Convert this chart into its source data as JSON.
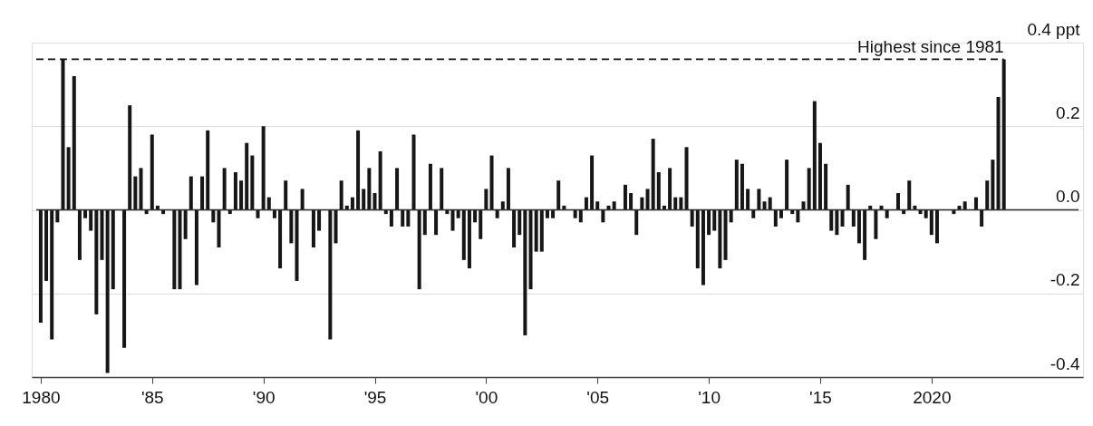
{
  "chart_data": {
    "type": "bar",
    "x": [
      1980,
      1980.25,
      1980.5,
      1980.75,
      1981,
      1981.25,
      1981.5,
      1981.75,
      1982,
      1982.25,
      1982.5,
      1982.75,
      1983,
      1983.25,
      1983.5,
      1983.75,
      1984,
      1984.25,
      1984.5,
      1984.75,
      1985,
      1985.25,
      1985.5,
      1985.75,
      1986,
      1986.25,
      1986.5,
      1986.75,
      1987,
      1987.25,
      1987.5,
      1987.75,
      1988,
      1988.25,
      1988.5,
      1988.75,
      1989,
      1989.25,
      1989.5,
      1989.75,
      1990,
      1990.25,
      1990.5,
      1990.75,
      1991,
      1991.25,
      1991.5,
      1991.75,
      1992,
      1992.25,
      1992.5,
      1992.75,
      1993,
      1993.25,
      1993.5,
      1993.75,
      1994,
      1994.25,
      1994.5,
      1994.75,
      1995,
      1995.25,
      1995.5,
      1995.75,
      1996,
      1996.25,
      1996.5,
      1996.75,
      1997,
      1997.25,
      1997.5,
      1997.75,
      1998,
      1998.25,
      1998.5,
      1998.75,
      1999,
      1999.25,
      1999.5,
      1999.75,
      2000,
      2000.25,
      2000.5,
      2000.75,
      2001,
      2001.25,
      2001.5,
      2001.75,
      2002,
      2002.25,
      2002.5,
      2002.75,
      2003,
      2003.25,
      2003.5,
      2003.75,
      2004,
      2004.25,
      2004.5,
      2004.75,
      2005,
      2005.25,
      2005.5,
      2005.75,
      2006,
      2006.25,
      2006.5,
      2006.75,
      2007,
      2007.25,
      2007.5,
      2007.75,
      2008,
      2008.25,
      2008.5,
      2008.75,
      2009,
      2009.25,
      2009.5,
      2009.75,
      2010,
      2010.25,
      2010.5,
      2010.75,
      2011,
      2011.25,
      2011.5,
      2011.75,
      2012,
      2012.25,
      2012.5,
      2012.75,
      2013,
      2013.25,
      2013.5,
      2013.75,
      2014,
      2014.25,
      2014.5,
      2014.75,
      2015,
      2015.25,
      2015.5,
      2015.75,
      2016,
      2016.25,
      2016.5,
      2016.75,
      2017,
      2017.25,
      2017.5,
      2017.75,
      2018,
      2018.25,
      2018.5,
      2018.75,
      2019,
      2019.25,
      2019.5,
      2019.75,
      2020,
      2020.25,
      2020.5,
      2020.75,
      2021,
      2021.25,
      2021.5,
      2021.75,
      2022,
      2022.25,
      2022.5,
      2022.75,
      2023,
      2023.25
    ],
    "series": [
      {
        "color": "#161616",
        "values": [
          -0.27,
          -0.17,
          -0.31,
          -0.03,
          0.36,
          0.15,
          0.32,
          -0.12,
          -0.02,
          -0.05,
          -0.25,
          -0.12,
          -0.39,
          -0.19,
          0,
          -0.33,
          0.25,
          0.08,
          0.1,
          -0.01,
          0.18,
          0.01,
          -0.01,
          0,
          -0.19,
          -0.19,
          -0.07,
          0.08,
          -0.18,
          0.08,
          0.19,
          -0.03,
          -0.09,
          0.1,
          -0.01,
          0.09,
          0.07,
          0.16,
          0.13,
          -0.02,
          0.2,
          0.03,
          -0.02,
          -0.14,
          0.07,
          -0.08,
          -0.17,
          0.05,
          0,
          -0.09,
          -0.05,
          0,
          -0.31,
          -0.08,
          0.07,
          0.01,
          0.03,
          0.19,
          0.05,
          0.1,
          0.04,
          0.14,
          -0.01,
          -0.04,
          0.1,
          -0.04,
          -0.04,
          0.18,
          -0.19,
          -0.06,
          0.11,
          -0.06,
          0.1,
          -0.01,
          -0.05,
          -0.02,
          -0.12,
          -0.14,
          -0.03,
          -0.07,
          0.05,
          0.13,
          -0.02,
          0.02,
          0.1,
          -0.09,
          -0.06,
          -0.3,
          -0.19,
          -0.1,
          -0.1,
          -0.02,
          -0.02,
          0.07,
          0.01,
          0,
          -0.02,
          -0.03,
          0.03,
          0.13,
          0.02,
          -0.03,
          0.01,
          0.02,
          0,
          0.06,
          0.04,
          -0.06,
          0.03,
          0.05,
          0.17,
          0.09,
          0.01,
          0.1,
          0.03,
          0.03,
          0.15,
          -0.04,
          -0.14,
          -0.18,
          -0.06,
          -0.05,
          -0.14,
          -0.12,
          -0.03,
          0.12,
          0.11,
          0.05,
          -0.02,
          0.05,
          0.02,
          0.03,
          -0.04,
          -0.02,
          0.12,
          -0.01,
          -0.03,
          0.02,
          0.1,
          0.26,
          0.16,
          0.11,
          -0.05,
          -0.06,
          -0.04,
          0.06,
          -0.04,
          -0.08,
          -0.12,
          0.01,
          -0.07,
          0.01,
          -0.02,
          0,
          0.04,
          -0.01,
          0.07,
          0.01,
          -0.01,
          -0.02,
          -0.06,
          -0.08,
          0,
          0,
          -0.01,
          0.01,
          0.02,
          0,
          0.03,
          -0.04,
          0.07,
          0.12,
          0.27,
          0.36
        ]
      }
    ],
    "xlim": [
      1979.8,
      2026.6
    ],
    "xticks": [
      1980,
      {
        "value": 1985,
        "label": "'85"
      },
      {
        "value": 1990,
        "label": "'90"
      },
      {
        "value": 1995,
        "label": "'95"
      },
      {
        "value": 2000,
        "label": "'00"
      },
      {
        "value": 2005,
        "label": "'05"
      },
      {
        "value": 2010,
        "label": "'10"
      },
      {
        "value": 2015,
        "label": "'15"
      },
      2020
    ],
    "ylim": [
      -0.4,
      0.4
    ],
    "yticks": [
      -0.4,
      -0.2,
      {
        "value": 0,
        "label": "0.0"
      },
      0.2,
      {
        "value": 0.4,
        "label": "0.4 ppt"
      }
    ],
    "grid": "y",
    "ref_lines": [
      {
        "axis": "y",
        "value": 0,
        "color": "#333333",
        "line_style": "solid"
      },
      {
        "axis": "y",
        "value": 0.36,
        "label": "Highest since 1981",
        "color": "#111111",
        "line_style": "dashed"
      }
    ]
  }
}
